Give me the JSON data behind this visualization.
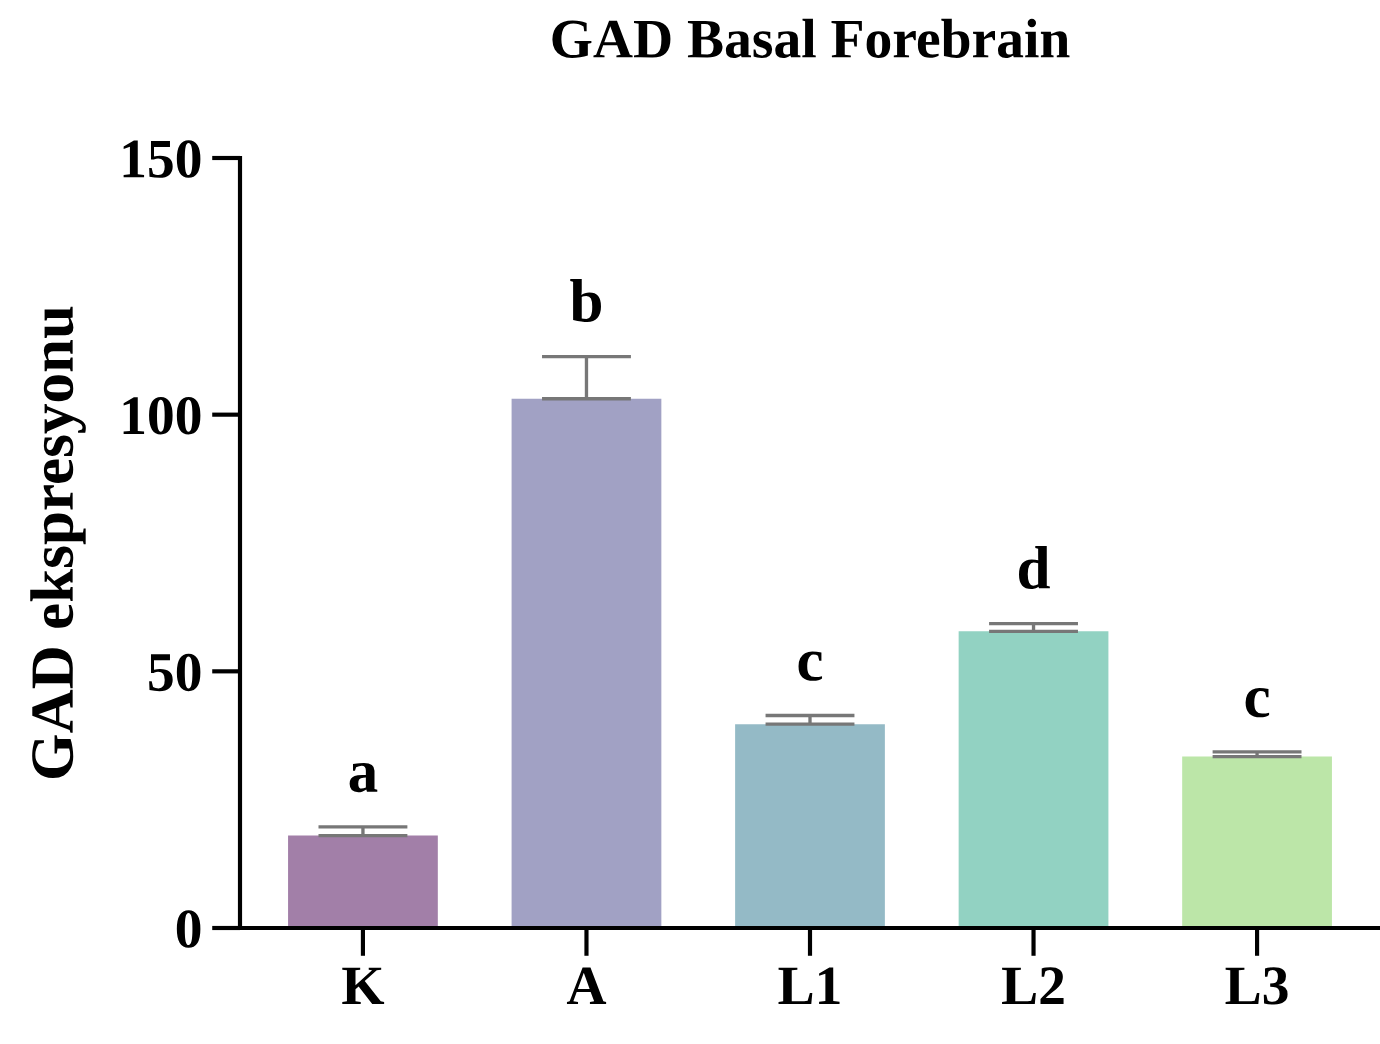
{
  "chart_data": {
    "type": "bar",
    "title": "GAD Basal Forebrain",
    "ylabel": "GAD ekspresyonu",
    "categories": [
      "K",
      "A",
      "L1",
      "L2",
      "L3"
    ],
    "values": [
      18.0,
      103.1,
      39.7,
      57.8,
      33.4
    ],
    "colors": [
      "#a27fa8",
      "#a1a1c4",
      "#94bac6",
      "#92d2c2",
      "#bce6a8"
    ],
    "errors": [
      [
        18.0,
        19.7
      ],
      [
        103.1,
        111.3
      ],
      [
        39.7,
        41.4
      ],
      [
        57.8,
        59.3
      ],
      [
        33.4,
        34.3
      ]
    ],
    "annotations": [
      "a",
      "b",
      "c",
      "d",
      "c"
    ],
    "ylim": [
      0,
      150
    ],
    "yticks": [
      0,
      50,
      100,
      150
    ],
    "grid": false,
    "legend": false
  }
}
